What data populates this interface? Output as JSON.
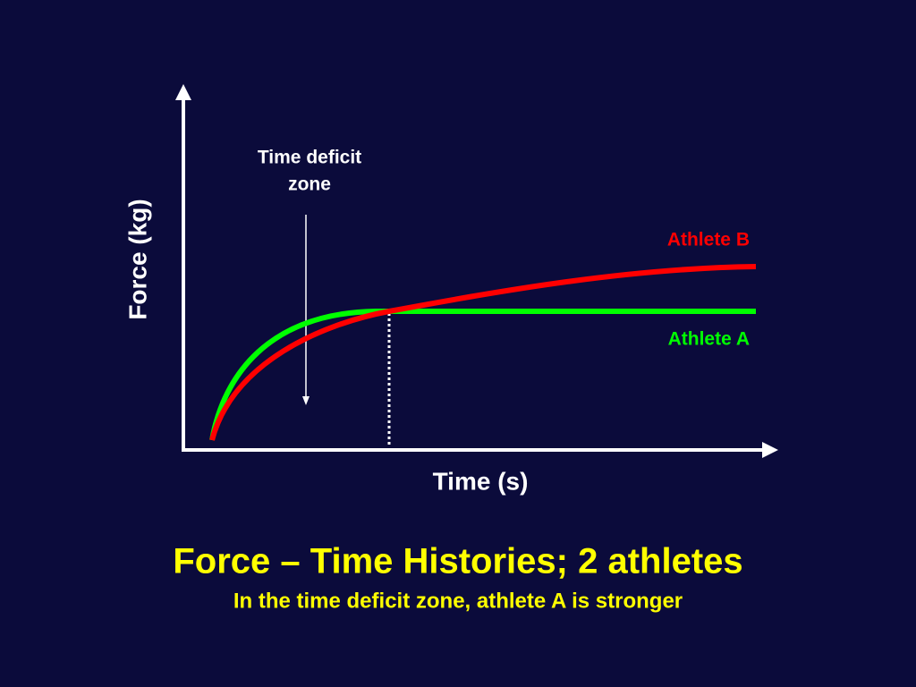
{
  "diagram": {
    "title": "Force – Time Histories; 2 athletes",
    "subtitle": "In the time deficit zone, athlete A is stronger",
    "y_axis_label": "Force (kg)",
    "x_axis_label": "Time (s)",
    "annotation": {
      "lines": [
        "Time deficit",
        "zone"
      ]
    },
    "curves": [
      {
        "label": "Athlete B",
        "color": "#ff0000"
      },
      {
        "label": "Athlete A",
        "color": "#00ff00"
      }
    ]
  }
}
